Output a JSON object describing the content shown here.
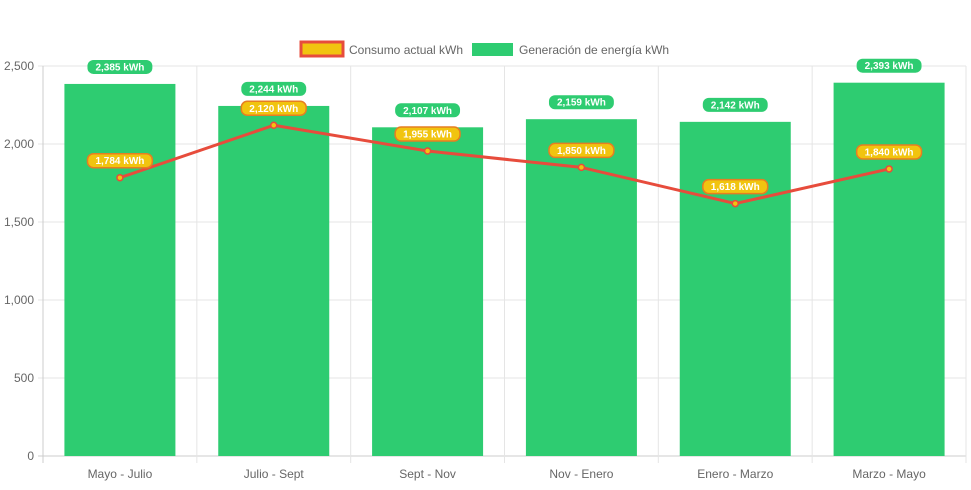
{
  "chart_data": {
    "type": "bar",
    "categories": [
      "Mayo - Julio",
      "Julio - Sept",
      "Sept - Nov",
      "Nov - Enero",
      "Enero - Marzo",
      "Marzo - Mayo"
    ],
    "ylim": [
      0,
      2500
    ],
    "yticks": [
      0,
      500,
      1000,
      1500,
      2000,
      2500
    ],
    "ytick_labels": [
      "0",
      "500",
      "1,000",
      "1,500",
      "2,000",
      "2,500"
    ],
    "grid": true,
    "legend_position": "top",
    "series": [
      {
        "name": "Consumo actual kWh",
        "type": "line",
        "values": [
          1784,
          2120,
          1955,
          1850,
          1618,
          1840
        ],
        "labels": [
          "1,784 kWh",
          "2,120 kWh",
          "1,955 kWh",
          "1,850 kWh",
          "1,618 kWh",
          "1,840 kWh"
        ],
        "color": "#e74c3c",
        "fill": "#f1c40f"
      },
      {
        "name": "Generación de energía kWh",
        "type": "bar",
        "values": [
          2385,
          2244,
          2107,
          2159,
          2142,
          2393
        ],
        "labels": [
          "2,385 kWh",
          "2,244 kWh",
          "2,107 kWh",
          "2,159 kWh",
          "2,142 kWh",
          "2,393 kWh"
        ],
        "color": "#2ecc71"
      }
    ]
  }
}
